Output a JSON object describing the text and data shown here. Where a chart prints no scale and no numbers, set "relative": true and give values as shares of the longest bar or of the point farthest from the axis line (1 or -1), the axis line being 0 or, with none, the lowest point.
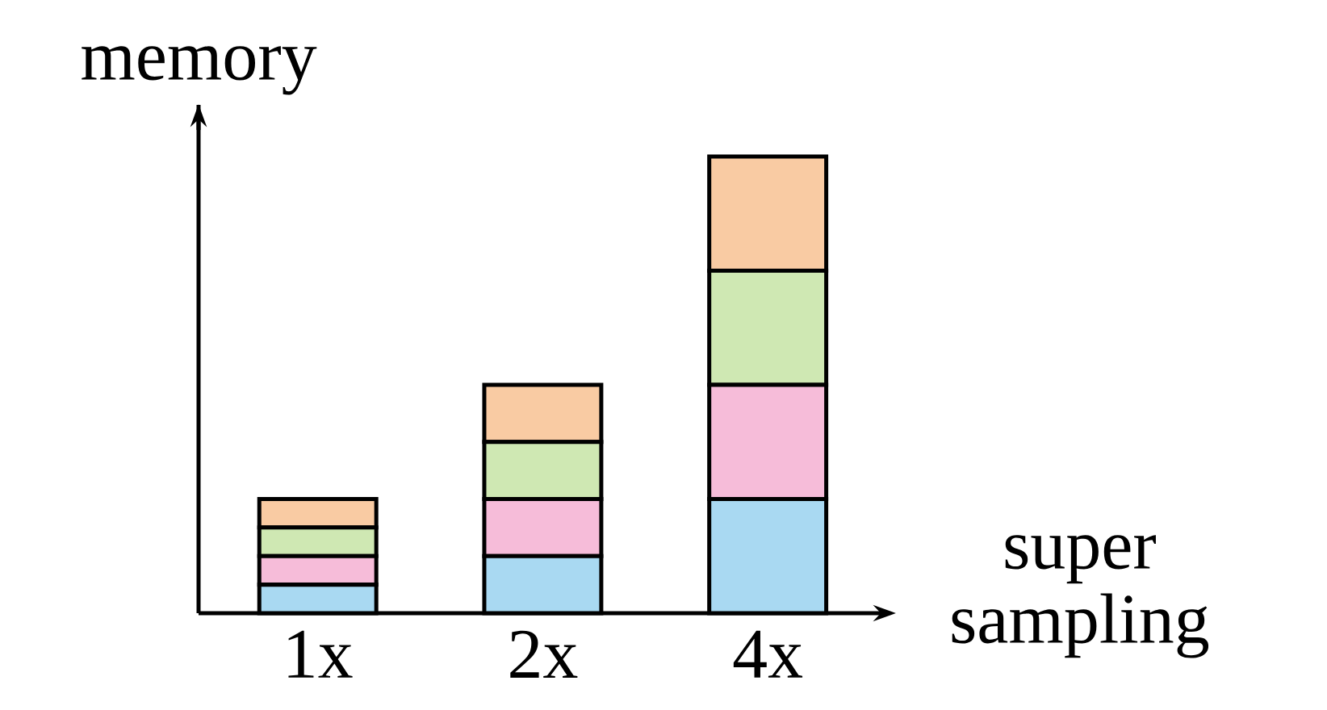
{
  "chart_data": {
    "type": "bar",
    "stacked": true,
    "relative": true,
    "ylabel": "memory",
    "xlabel": "super sampling",
    "categories": [
      "1x",
      "2x",
      "4x"
    ],
    "series": [
      {
        "color": "#a9d9f2",
        "values": [
          0.0625,
          0.125,
          0.25
        ]
      },
      {
        "color": "#f6bcd9",
        "values": [
          0.0625,
          0.125,
          0.25
        ]
      },
      {
        "color": "#cfe8b3",
        "values": [
          0.0625,
          0.125,
          0.25
        ]
      },
      {
        "color": "#f9cba3",
        "values": [
          0.0625,
          0.125,
          0.25
        ]
      }
    ]
  }
}
